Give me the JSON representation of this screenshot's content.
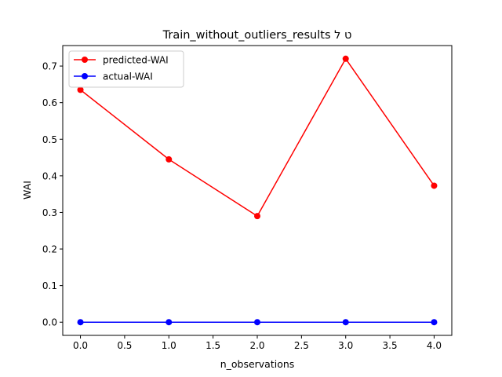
{
  "chart_data": {
    "type": "line",
    "title": "Train_without_outliers_results ט ל",
    "xlabel": "n_observations",
    "ylabel": "WAI",
    "x": [
      0,
      1,
      2,
      3,
      4
    ],
    "xlim": [
      -0.2,
      4.2
    ],
    "ylim": [
      -0.036,
      0.756
    ],
    "xticks": [
      "0.0",
      "0.5",
      "1.0",
      "1.5",
      "2.0",
      "2.5",
      "3.0",
      "3.5",
      "4.0"
    ],
    "yticks": [
      "0.0",
      "0.1",
      "0.2",
      "0.3",
      "0.4",
      "0.5",
      "0.6",
      "0.7"
    ],
    "legend_position": "upper-left",
    "grid": false,
    "series": [
      {
        "name": "predicted-WAI",
        "color": "#ff0000",
        "values": [
          0.635,
          0.445,
          0.29,
          0.72,
          0.373
        ]
      },
      {
        "name": "actual-WAI",
        "color": "#0000ff",
        "values": [
          0.0,
          0.0,
          0.0,
          0.0,
          0.0
        ]
      }
    ]
  }
}
